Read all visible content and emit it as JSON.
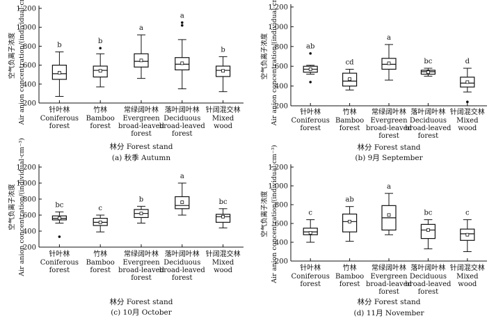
{
  "figure": {
    "category_names": [
      {
        "cn": "针叶林",
        "en": [
          "Coniferous",
          "forest"
        ]
      },
      {
        "cn": "竹林",
        "en": [
          "Bamboo",
          "forest"
        ]
      },
      {
        "cn": "常绿阔叶林",
        "en": [
          "Evergreen",
          "broad-leaved",
          "forest"
        ]
      },
      {
        "cn": "落叶阔叶林",
        "en": [
          "Deciduous",
          "broad-leaved",
          "forest"
        ]
      },
      {
        "cn": "针阔混交林",
        "en": [
          "Mixed",
          "wood"
        ]
      }
    ]
  },
  "chart_data": [
    {
      "type": "box",
      "caption": "(a) 秋季 Autumn",
      "ylabel_cn": "空气负离子浓度",
      "ylabel_en": "Air anion concentration/(individual·cm⁻³)",
      "xlabel": "林分 Forest stand",
      "ylim": [
        200,
        1200
      ],
      "yticks": [
        "200",
        "400",
        "600",
        "800",
        "1 000",
        "1 200"
      ],
      "ytick_values": [
        200,
        400,
        600,
        800,
        1000,
        1200
      ],
      "boxes": [
        {
          "min": 270,
          "q1": 450,
          "median": 510,
          "q3": 600,
          "max": 740,
          "mean": 520,
          "outliers": [],
          "letter": "b"
        },
        {
          "min": 370,
          "q1": 475,
          "median": 545,
          "q3": 590,
          "max": 720,
          "mean": 540,
          "outliers": [
            780
          ],
          "letter": "b"
        },
        {
          "min": 460,
          "q1": 580,
          "median": 640,
          "q3": 720,
          "max": 920,
          "mean": 650,
          "outliers": [],
          "letter": "a"
        },
        {
          "min": 350,
          "q1": 550,
          "median": 610,
          "q3": 680,
          "max": 870,
          "mean": 620,
          "outliers": [
            1020,
            1050
          ],
          "letter": "a"
        },
        {
          "min": 320,
          "q1": 480,
          "median": 545,
          "q3": 590,
          "max": 690,
          "mean": 540,
          "outliers": [],
          "letter": "b"
        }
      ]
    },
    {
      "type": "box",
      "caption": "(b) 9月 September",
      "ylabel_cn": "空气负离子浓度",
      "ylabel_en": "Air anion concentration/(individual·cm⁻³)",
      "xlabel": "林分 Forest stand",
      "ylim": [
        200,
        1200
      ],
      "yticks": [
        "200",
        "400",
        "600",
        "800",
        "1 000",
        "1 200"
      ],
      "ytick_values": [
        200,
        400,
        600,
        800,
        1000,
        1200
      ],
      "boxes": [
        {
          "min": 520,
          "q1": 540,
          "median": 570,
          "q3": 600,
          "max": 610,
          "mean": 570,
          "outliers": [
            730,
            440
          ],
          "letter": "ab"
        },
        {
          "min": 360,
          "q1": 400,
          "median": 450,
          "q3": 530,
          "max": 570,
          "mean": 470,
          "outliers": [],
          "letter": "cd"
        },
        {
          "min": 460,
          "q1": 570,
          "median": 620,
          "q3": 680,
          "max": 820,
          "mean": 630,
          "outliers": [],
          "letter": "a"
        },
        {
          "min": 500,
          "q1": 520,
          "median": 545,
          "q3": 560,
          "max": 580,
          "mean": 540,
          "outliers": [],
          "letter": "bc"
        },
        {
          "min": 340,
          "q1": 390,
          "median": 430,
          "q3": 490,
          "max": 580,
          "mean": 440,
          "outliers": [
            240
          ],
          "letter": "d"
        }
      ]
    },
    {
      "type": "box",
      "caption": "(c) 10月 October",
      "ylabel_cn": "空气负离子浓度",
      "ylabel_en": "Air anion concentration/(individual·cm⁻³)",
      "xlabel": "林分 Forest stand",
      "ylim": [
        200,
        1200
      ],
      "yticks": [
        "200",
        "400",
        "600",
        "800",
        "1 000",
        "1 200"
      ],
      "ytick_values": [
        200,
        400,
        600,
        800,
        1000,
        1200
      ],
      "boxes": [
        {
          "min": 500,
          "q1": 540,
          "median": 560,
          "q3": 590,
          "max": 640,
          "mean": 560,
          "outliers": [
            330
          ],
          "letter": "bc"
        },
        {
          "min": 390,
          "q1": 470,
          "median": 510,
          "q3": 560,
          "max": 600,
          "mean": 510,
          "outliers": [],
          "letter": "c"
        },
        {
          "min": 500,
          "q1": 570,
          "median": 620,
          "q3": 670,
          "max": 710,
          "mean": 620,
          "outliers": [],
          "letter": "b"
        },
        {
          "min": 600,
          "q1": 680,
          "median": 720,
          "q3": 830,
          "max": 1000,
          "mean": 760,
          "outliers": [],
          "letter": "a"
        },
        {
          "min": 440,
          "q1": 510,
          "median": 580,
          "q3": 610,
          "max": 680,
          "mean": 580,
          "outliers": [],
          "letter": "bc"
        }
      ]
    },
    {
      "type": "box",
      "caption": "(d) 11月 November",
      "ylabel_cn": "空气负离子浓度",
      "ylabel_en": "Air anion concentration/(individual·cm⁻³)",
      "xlabel": "林分 Forest stand",
      "ylim": [
        200,
        1200
      ],
      "yticks": [
        "200",
        "400",
        "600",
        "800",
        "1 000",
        "1 200"
      ],
      "ytick_values": [
        200,
        400,
        600,
        800,
        1000,
        1200
      ],
      "boxes": [
        {
          "min": 400,
          "q1": 480,
          "median": 510,
          "q3": 550,
          "max": 640,
          "mean": 500,
          "outliers": [],
          "letter": "c"
        },
        {
          "min": 410,
          "q1": 510,
          "median": 620,
          "q3": 700,
          "max": 780,
          "mean": 620,
          "outliers": [],
          "letter": "ab"
        },
        {
          "min": 480,
          "q1": 530,
          "median": 660,
          "q3": 790,
          "max": 920,
          "mean": 690,
          "outliers": [],
          "letter": "a"
        },
        {
          "min": 330,
          "q1": 440,
          "median": 530,
          "q3": 590,
          "max": 640,
          "mean": 530,
          "outliers": [],
          "letter": "bc"
        },
        {
          "min": 300,
          "q1": 420,
          "median": 490,
          "q3": 540,
          "max": 640,
          "mean": 480,
          "outliers": [],
          "letter": "c"
        }
      ]
    }
  ]
}
